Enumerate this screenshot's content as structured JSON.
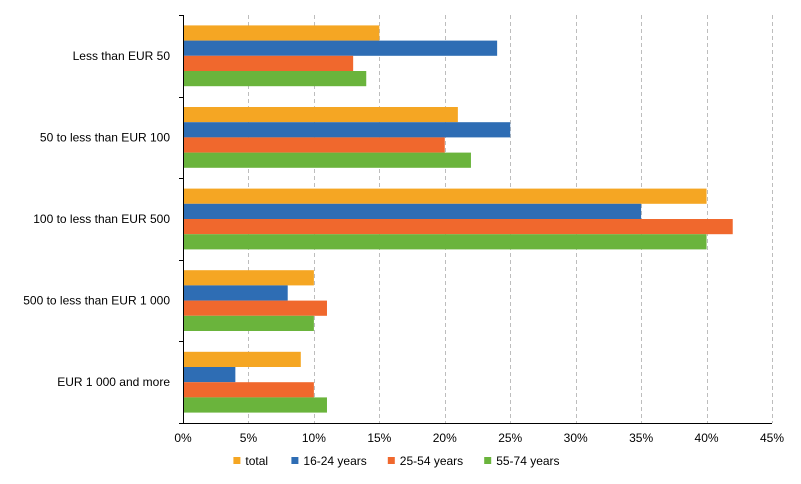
{
  "chart_data": {
    "type": "bar",
    "orientation": "horizontal",
    "categories": [
      "Less than EUR 50",
      "50 to less than EUR 100",
      "100 to less than EUR 500",
      "500 to less than EUR 1 000",
      "EUR 1 000 and more"
    ],
    "series": [
      {
        "name": "total",
        "color": "#f5a623",
        "values": [
          15,
          21,
          40,
          10,
          9
        ]
      },
      {
        "name": "16-24 years",
        "color": "#2e6db4",
        "values": [
          24,
          25,
          35,
          8,
          4
        ]
      },
      {
        "name": "25-54 years",
        "color": "#f0682d",
        "values": [
          13,
          20,
          42,
          11,
          10
        ]
      },
      {
        "name": "55-74 years",
        "color": "#6ab43c",
        "values": [
          14,
          22,
          40,
          10,
          11
        ]
      }
    ],
    "xlim": [
      0,
      45
    ],
    "xticks": [
      "0%",
      "5%",
      "10%",
      "15%",
      "20%",
      "25%",
      "30%",
      "35%",
      "40%",
      "45%"
    ],
    "grid": "vertical dashed",
    "legend_position": "bottom"
  }
}
